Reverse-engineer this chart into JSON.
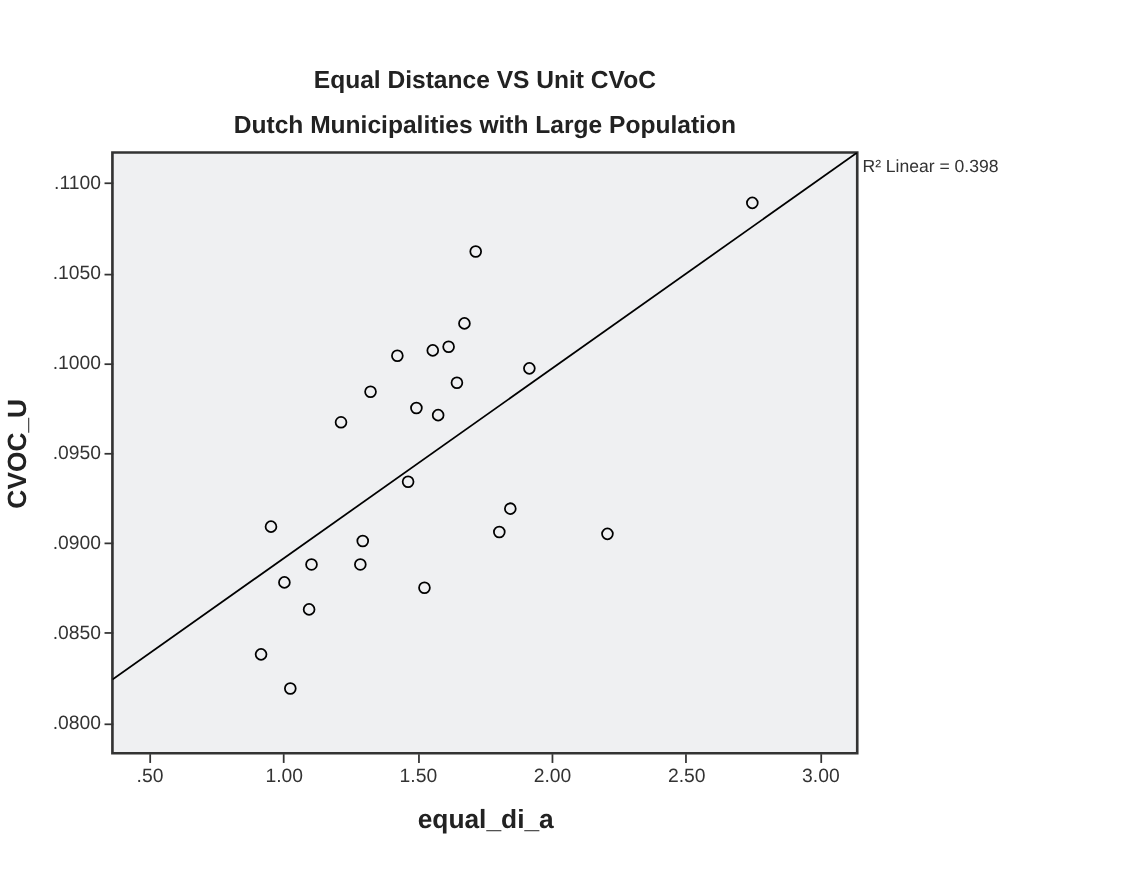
{
  "chart_data": {
    "type": "scatter",
    "title": "Equal Distance VS Unit CVoC",
    "subtitle": "Dutch Municipalities with Large Population",
    "xlabel": "equal_di_a",
    "ylabel": "CVOC_U",
    "annotations": [
      "R² Linear = 0.398"
    ],
    "series": [
      {
        "color": "#000000",
        "marker": "circle",
        "x": [
          0.917,
          1.026,
          0.954,
          1.004,
          1.105,
          1.096,
          1.215,
          1.287,
          1.296,
          1.325,
          1.425,
          1.465,
          1.496,
          1.526,
          1.557,
          1.577,
          1.616,
          1.647,
          1.675,
          1.717,
          1.917,
          1.846,
          1.805,
          2.208,
          2.748
        ],
        "values": [
          0.0838,
          0.0819,
          0.0909,
          0.0878,
          0.0888,
          0.0863,
          0.0967,
          0.0888,
          0.0901,
          0.0984,
          0.1004,
          0.0934,
          0.0975,
          0.0875,
          0.1007,
          0.0971,
          0.1009,
          0.0989,
          0.1022,
          0.1062,
          0.0997,
          0.0919,
          0.0906,
          0.0905,
          0.1089
        ]
      },
      {
        "type": "line",
        "color": "#000000",
        "line_style": "solid",
        "x": [
          0.363,
          3.139
        ],
        "values": [
          0.0824,
          0.1117
        ]
      }
    ],
    "xlim": [
      0.363,
      3.139
    ],
    "ylim": [
      0.0783,
      0.1117
    ],
    "xticks": [
      {
        "value": 0.5,
        "label": ".50"
      },
      {
        "value": 1.0,
        "label": "1.00"
      },
      {
        "value": 1.5,
        "label": "1.50"
      },
      {
        "value": 2.0,
        "label": "2.00"
      },
      {
        "value": 2.5,
        "label": "2.50"
      },
      {
        "value": 3.0,
        "label": "3.00"
      }
    ],
    "yticks": [
      {
        "value": 0.08,
        "label": ".0800"
      },
      {
        "value": 0.085,
        "label": ".0850"
      },
      {
        "value": 0.09,
        "label": ".0900"
      },
      {
        "value": 0.095,
        "label": ".0950"
      },
      {
        "value": 0.1,
        "label": ".1000"
      },
      {
        "value": 0.105,
        "label": ".1050"
      },
      {
        "value": 0.11,
        "label": ".1100"
      }
    ],
    "grid": false,
    "legend": false
  }
}
